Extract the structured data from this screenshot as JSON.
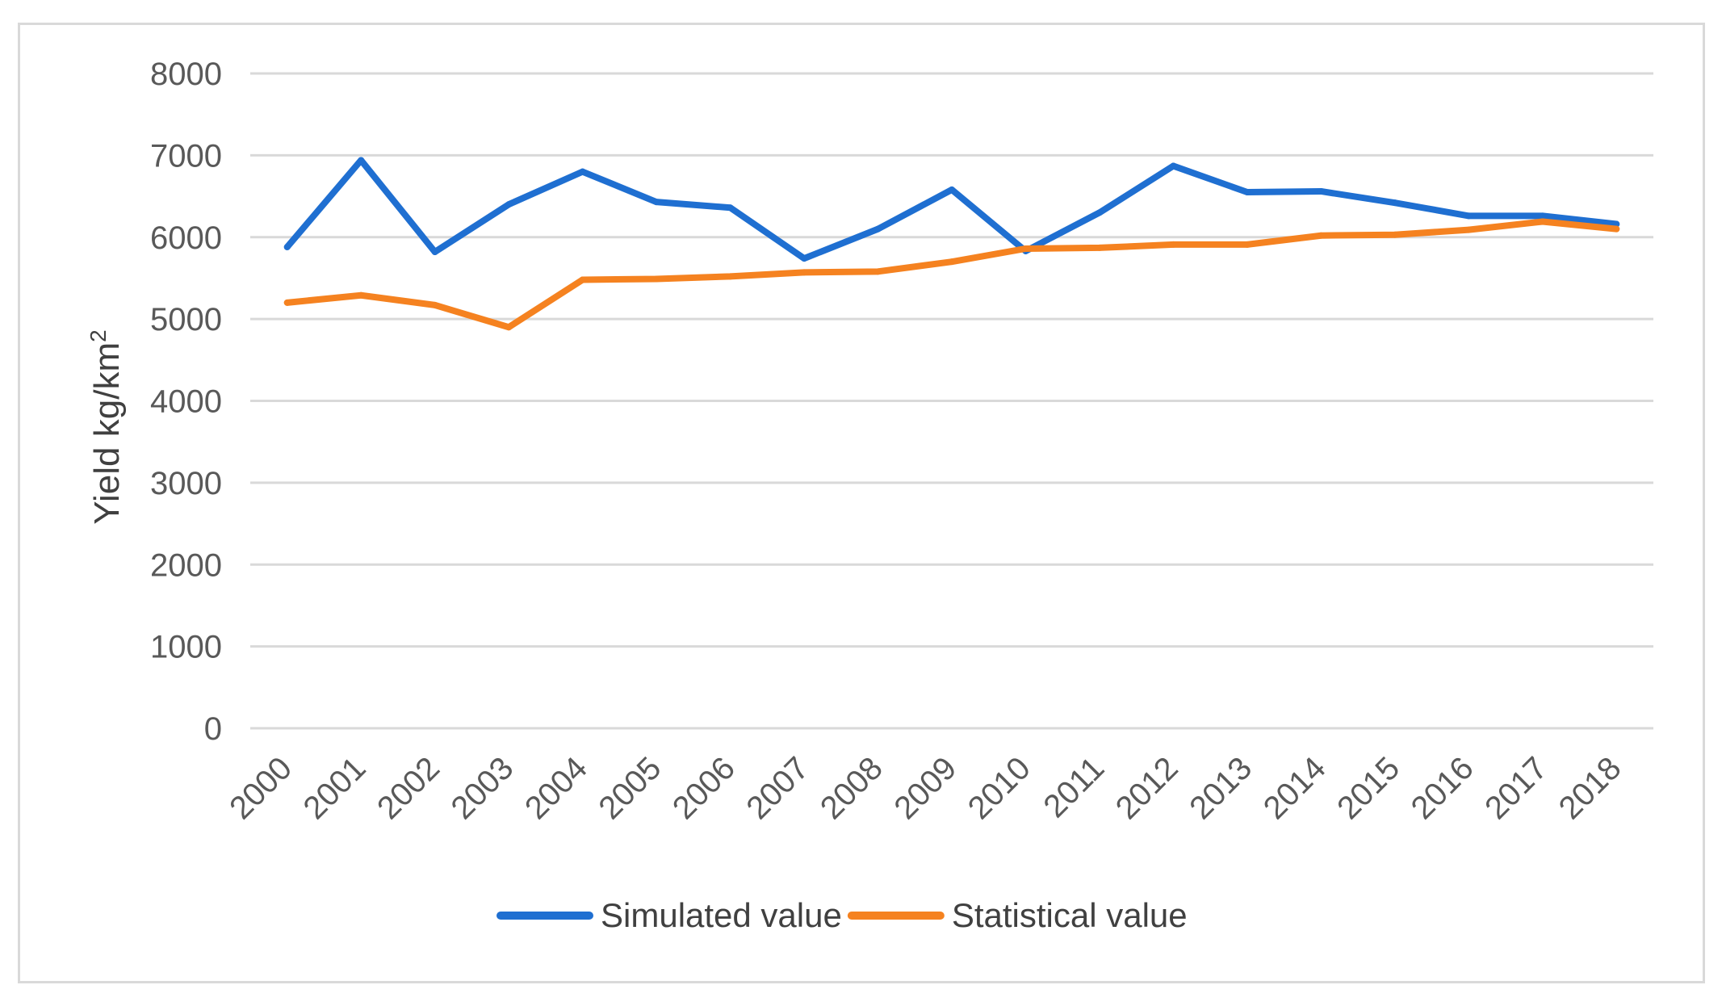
{
  "chart_data": {
    "type": "line",
    "title": "",
    "xlabel": "",
    "ylabel": "Yield kg/km",
    "ylabel_superscript": "2",
    "ylim": [
      0,
      8000
    ],
    "yticks": [
      0,
      1000,
      2000,
      3000,
      4000,
      5000,
      6000,
      7000,
      8000
    ],
    "grid": true,
    "legend_position": "bottom",
    "categories": [
      "2000",
      "2001",
      "2002",
      "2003",
      "2004",
      "2005",
      "2006",
      "2007",
      "2008",
      "2009",
      "2010",
      "2011",
      "2012",
      "2013",
      "2014",
      "2015",
      "2016",
      "2017",
      "2018"
    ],
    "series": [
      {
        "name": "Simulated value",
        "color": "#1f6fd1",
        "values": [
          5880,
          6940,
          5820,
          6400,
          6800,
          6430,
          6360,
          5740,
          6100,
          6580,
          5830,
          6300,
          6870,
          6550,
          6560,
          6420,
          6260,
          6260,
          6160
        ]
      },
      {
        "name": "Statistical value",
        "color": "#f58220",
        "values": [
          5200,
          5290,
          5170,
          4900,
          5480,
          5490,
          5520,
          5570,
          5580,
          5700,
          5860,
          5870,
          5910,
          5910,
          6020,
          6030,
          6090,
          6190,
          6100
        ]
      }
    ]
  }
}
